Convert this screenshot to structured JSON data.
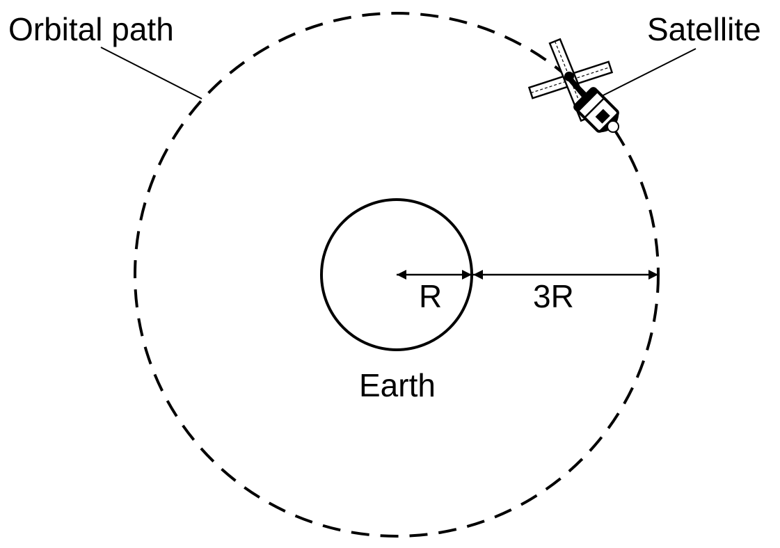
{
  "diagram": {
    "labels": {
      "orbital_path": "Orbital path",
      "satellite": "Satellite",
      "earth": "Earth",
      "earth_radius": "R",
      "orbit_distance": "3R"
    },
    "colors": {
      "stroke": "#000000",
      "background": "#ffffff"
    },
    "icons": {
      "satellite": "satellite-icon"
    }
  }
}
